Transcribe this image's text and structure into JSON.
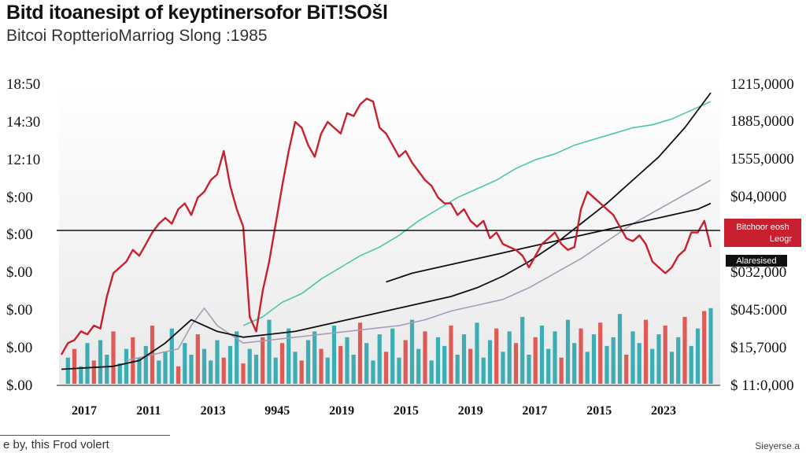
{
  "title": "Bitd itoanesipt of keyptinersofor BiT!SOšl",
  "subtitle": "Bitcoi RoptterioMarriog Slong :1985",
  "footer_left": "e by, this Frod volert",
  "footer_right": "Sieyerse a",
  "chart_data": {
    "type": "line",
    "title": "Bitd itoanesipt of keyptinersofor BiT!SOšl",
    "subtitle": "Bitcoi RoptterioMarriog Slong :1985",
    "x_tick_labels": [
      "2017",
      "2011",
      "2013",
      "9945",
      "2019",
      "2015",
      "2019",
      "2017",
      "2015",
      "2023"
    ],
    "left_axis_labels": [
      "18:50",
      "14:30",
      "12:10",
      "$:00",
      "$:00",
      "$.00",
      "$.00",
      "$.00",
      "$.00"
    ],
    "right_axis_labels": [
      "1215,0000",
      "1885,0000",
      "1555,0000",
      "$04,0000",
      "$032,000",
      "$045:000",
      "$15,7000",
      "$ 11:0,000"
    ],
    "left_axis_range": [
      0,
      100
    ],
    "grid": false,
    "reference_line_level": 44,
    "labels": {
      "red_label_lines": [
        "Bitchoor eosh",
        "Leogr"
      ],
      "black_label": "Alaresised"
    },
    "colors": {
      "price": "#c8202e",
      "teal": "#4ac8a8",
      "black": "#111111",
      "lavender": "#a99ab8",
      "bar_teal": "#2aa6ae",
      "bar_red": "#dd4a45"
    },
    "series": [
      {
        "key": "price",
        "x": [
          0,
          1,
          2,
          3,
          4,
          5,
          6,
          7,
          8,
          9,
          10,
          11,
          12,
          13,
          14,
          15,
          16,
          17,
          18,
          19,
          20,
          21,
          22,
          23,
          24,
          25,
          26,
          27,
          28,
          29,
          30,
          31,
          32,
          33,
          34,
          35,
          36,
          37,
          38,
          39,
          40,
          41,
          42,
          43,
          44,
          45,
          46,
          47,
          48,
          49,
          50,
          51,
          52,
          53,
          54,
          55,
          56,
          57,
          58,
          59,
          60,
          61,
          62,
          63,
          64,
          65,
          66,
          67,
          68,
          69,
          70,
          71,
          72,
          73,
          74,
          75,
          76,
          77,
          78,
          79,
          80,
          81,
          82,
          83,
          84,
          85,
          86,
          87,
          88,
          89,
          90,
          91,
          92,
          93,
          94,
          95,
          96,
          97,
          98,
          99,
          100
        ],
        "y": [
          10,
          14,
          15,
          18,
          17,
          20,
          19,
          30,
          38,
          40,
          42,
          46,
          44,
          48,
          52,
          55,
          57,
          55,
          60,
          62,
          58,
          64,
          66,
          70,
          72,
          80,
          68,
          60,
          54,
          23,
          18,
          32,
          42,
          55,
          68,
          80,
          90,
          88,
          82,
          78,
          86,
          90,
          88,
          86,
          93,
          92,
          96,
          98,
          97,
          88,
          86,
          82,
          78,
          80,
          76,
          73,
          70,
          68,
          64,
          62,
          62,
          58,
          60,
          56,
          54,
          56,
          50,
          52,
          48,
          47,
          46,
          44,
          40,
          44,
          48,
          50,
          52,
          48,
          46,
          47,
          60,
          66,
          64,
          62,
          60,
          58,
          54,
          50,
          49,
          51,
          48,
          42,
          40,
          38,
          40,
          44,
          46,
          52,
          52,
          56,
          47
        ]
      },
      {
        "key": "teal",
        "x": [
          28,
          31,
          34,
          37,
          40,
          43,
          46,
          49,
          52,
          55,
          58,
          61,
          64,
          67,
          70,
          73,
          76,
          79,
          82,
          85,
          88,
          91,
          94,
          97,
          100
        ],
        "y": [
          20,
          23,
          28,
          31,
          36,
          40,
          44,
          47,
          51,
          56,
          60,
          64,
          67,
          70,
          74,
          77,
          79,
          82,
          84,
          86,
          88,
          89,
          91,
          94,
          97
        ]
      },
      {
        "key": "black",
        "x": [
          0,
          8,
          12,
          16,
          20,
          24,
          28,
          32,
          36,
          40,
          44,
          48,
          52,
          56,
          60,
          64,
          68,
          72,
          76,
          80,
          84,
          88,
          92,
          96,
          100
        ],
        "y": [
          5,
          6,
          8,
          14,
          22,
          18,
          16,
          17,
          18,
          20,
          22,
          24,
          26,
          28,
          30,
          33,
          37,
          42,
          48,
          55,
          62,
          70,
          78,
          88,
          100
        ]
      },
      {
        "key": "black2",
        "x": [
          50,
          54,
          58,
          62,
          66,
          70,
          74,
          78,
          82,
          86,
          90,
          94,
          98,
          100
        ],
        "y": [
          35,
          38,
          40,
          42,
          44,
          46,
          48,
          50,
          52,
          54,
          56,
          58,
          60,
          62
        ]
      },
      {
        "key": "lavender",
        "x": [
          10,
          14,
          18,
          20,
          22,
          24,
          28,
          32,
          36,
          40,
          44,
          48,
          52,
          56,
          60,
          64,
          68,
          72,
          76,
          80,
          84,
          88,
          92,
          96,
          100
        ],
        "y": [
          8,
          10,
          12,
          20,
          26,
          20,
          14,
          15,
          16,
          17,
          18,
          19,
          20,
          22,
          25,
          27,
          29,
          33,
          38,
          43,
          49,
          55,
          60,
          65,
          70
        ]
      }
    ],
    "bars": [
      [
        1,
        9,
        "t"
      ],
      [
        2,
        12,
        "r"
      ],
      [
        3,
        6,
        "t"
      ],
      [
        4,
        14,
        "t"
      ],
      [
        5,
        8,
        "r"
      ],
      [
        6,
        15,
        "t"
      ],
      [
        7,
        10,
        "t"
      ],
      [
        8,
        18,
        "r"
      ],
      [
        9,
        7,
        "t"
      ],
      [
        10,
        12,
        "t"
      ],
      [
        11,
        16,
        "r"
      ],
      [
        12,
        9,
        "t"
      ],
      [
        13,
        13,
        "t"
      ],
      [
        14,
        20,
        "r"
      ],
      [
        15,
        8,
        "t"
      ],
      [
        16,
        11,
        "t"
      ],
      [
        17,
        19,
        "t"
      ],
      [
        18,
        6,
        "r"
      ],
      [
        19,
        14,
        "t"
      ],
      [
        20,
        10,
        "t"
      ],
      [
        21,
        17,
        "r"
      ],
      [
        22,
        12,
        "t"
      ],
      [
        23,
        8,
        "t"
      ],
      [
        24,
        15,
        "t"
      ],
      [
        25,
        9,
        "r"
      ],
      [
        26,
        13,
        "t"
      ],
      [
        27,
        18,
        "t"
      ],
      [
        28,
        7,
        "r"
      ],
      [
        29,
        12,
        "t"
      ],
      [
        30,
        10,
        "t"
      ],
      [
        31,
        16,
        "r"
      ],
      [
        32,
        22,
        "t"
      ],
      [
        33,
        9,
        "t"
      ],
      [
        34,
        14,
        "r"
      ],
      [
        35,
        19,
        "t"
      ],
      [
        36,
        11,
        "t"
      ],
      [
        37,
        8,
        "r"
      ],
      [
        38,
        15,
        "t"
      ],
      [
        39,
        18,
        "t"
      ],
      [
        40,
        12,
        "r"
      ],
      [
        41,
        9,
        "t"
      ],
      [
        42,
        20,
        "t"
      ],
      [
        43,
        13,
        "r"
      ],
      [
        44,
        16,
        "t"
      ],
      [
        45,
        10,
        "t"
      ],
      [
        46,
        21,
        "r"
      ],
      [
        47,
        14,
        "t"
      ],
      [
        48,
        8,
        "t"
      ],
      [
        49,
        17,
        "t"
      ],
      [
        50,
        11,
        "r"
      ],
      [
        51,
        19,
        "t"
      ],
      [
        52,
        9,
        "t"
      ],
      [
        53,
        15,
        "r"
      ],
      [
        54,
        22,
        "t"
      ],
      [
        55,
        12,
        "t"
      ],
      [
        56,
        18,
        "r"
      ],
      [
        57,
        8,
        "t"
      ],
      [
        58,
        16,
        "t"
      ],
      [
        59,
        13,
        "t"
      ],
      [
        60,
        20,
        "r"
      ],
      [
        61,
        10,
        "t"
      ],
      [
        62,
        17,
        "t"
      ],
      [
        63,
        12,
        "r"
      ],
      [
        64,
        21,
        "t"
      ],
      [
        65,
        9,
        "t"
      ],
      [
        66,
        15,
        "t"
      ],
      [
        67,
        19,
        "r"
      ],
      [
        68,
        11,
        "t"
      ],
      [
        69,
        18,
        "t"
      ],
      [
        70,
        14,
        "r"
      ],
      [
        71,
        23,
        "t"
      ],
      [
        72,
        10,
        "t"
      ],
      [
        73,
        16,
        "r"
      ],
      [
        74,
        20,
        "t"
      ],
      [
        75,
        12,
        "t"
      ],
      [
        76,
        18,
        "t"
      ],
      [
        77,
        9,
        "r"
      ],
      [
        78,
        22,
        "t"
      ],
      [
        79,
        14,
        "t"
      ],
      [
        80,
        19,
        "r"
      ],
      [
        81,
        11,
        "t"
      ],
      [
        82,
        17,
        "t"
      ],
      [
        83,
        21,
        "r"
      ],
      [
        84,
        13,
        "t"
      ],
      [
        85,
        16,
        "t"
      ],
      [
        86,
        24,
        "t"
      ],
      [
        87,
        10,
        "r"
      ],
      [
        88,
        18,
        "t"
      ],
      [
        89,
        14,
        "t"
      ],
      [
        90,
        22,
        "r"
      ],
      [
        91,
        12,
        "t"
      ],
      [
        92,
        17,
        "t"
      ],
      [
        93,
        20,
        "r"
      ],
      [
        94,
        11,
        "t"
      ],
      [
        95,
        16,
        "t"
      ],
      [
        96,
        23,
        "r"
      ],
      [
        97,
        13,
        "t"
      ],
      [
        98,
        19,
        "t"
      ],
      [
        99,
        25,
        "r"
      ],
      [
        100,
        26,
        "t"
      ]
    ]
  }
}
